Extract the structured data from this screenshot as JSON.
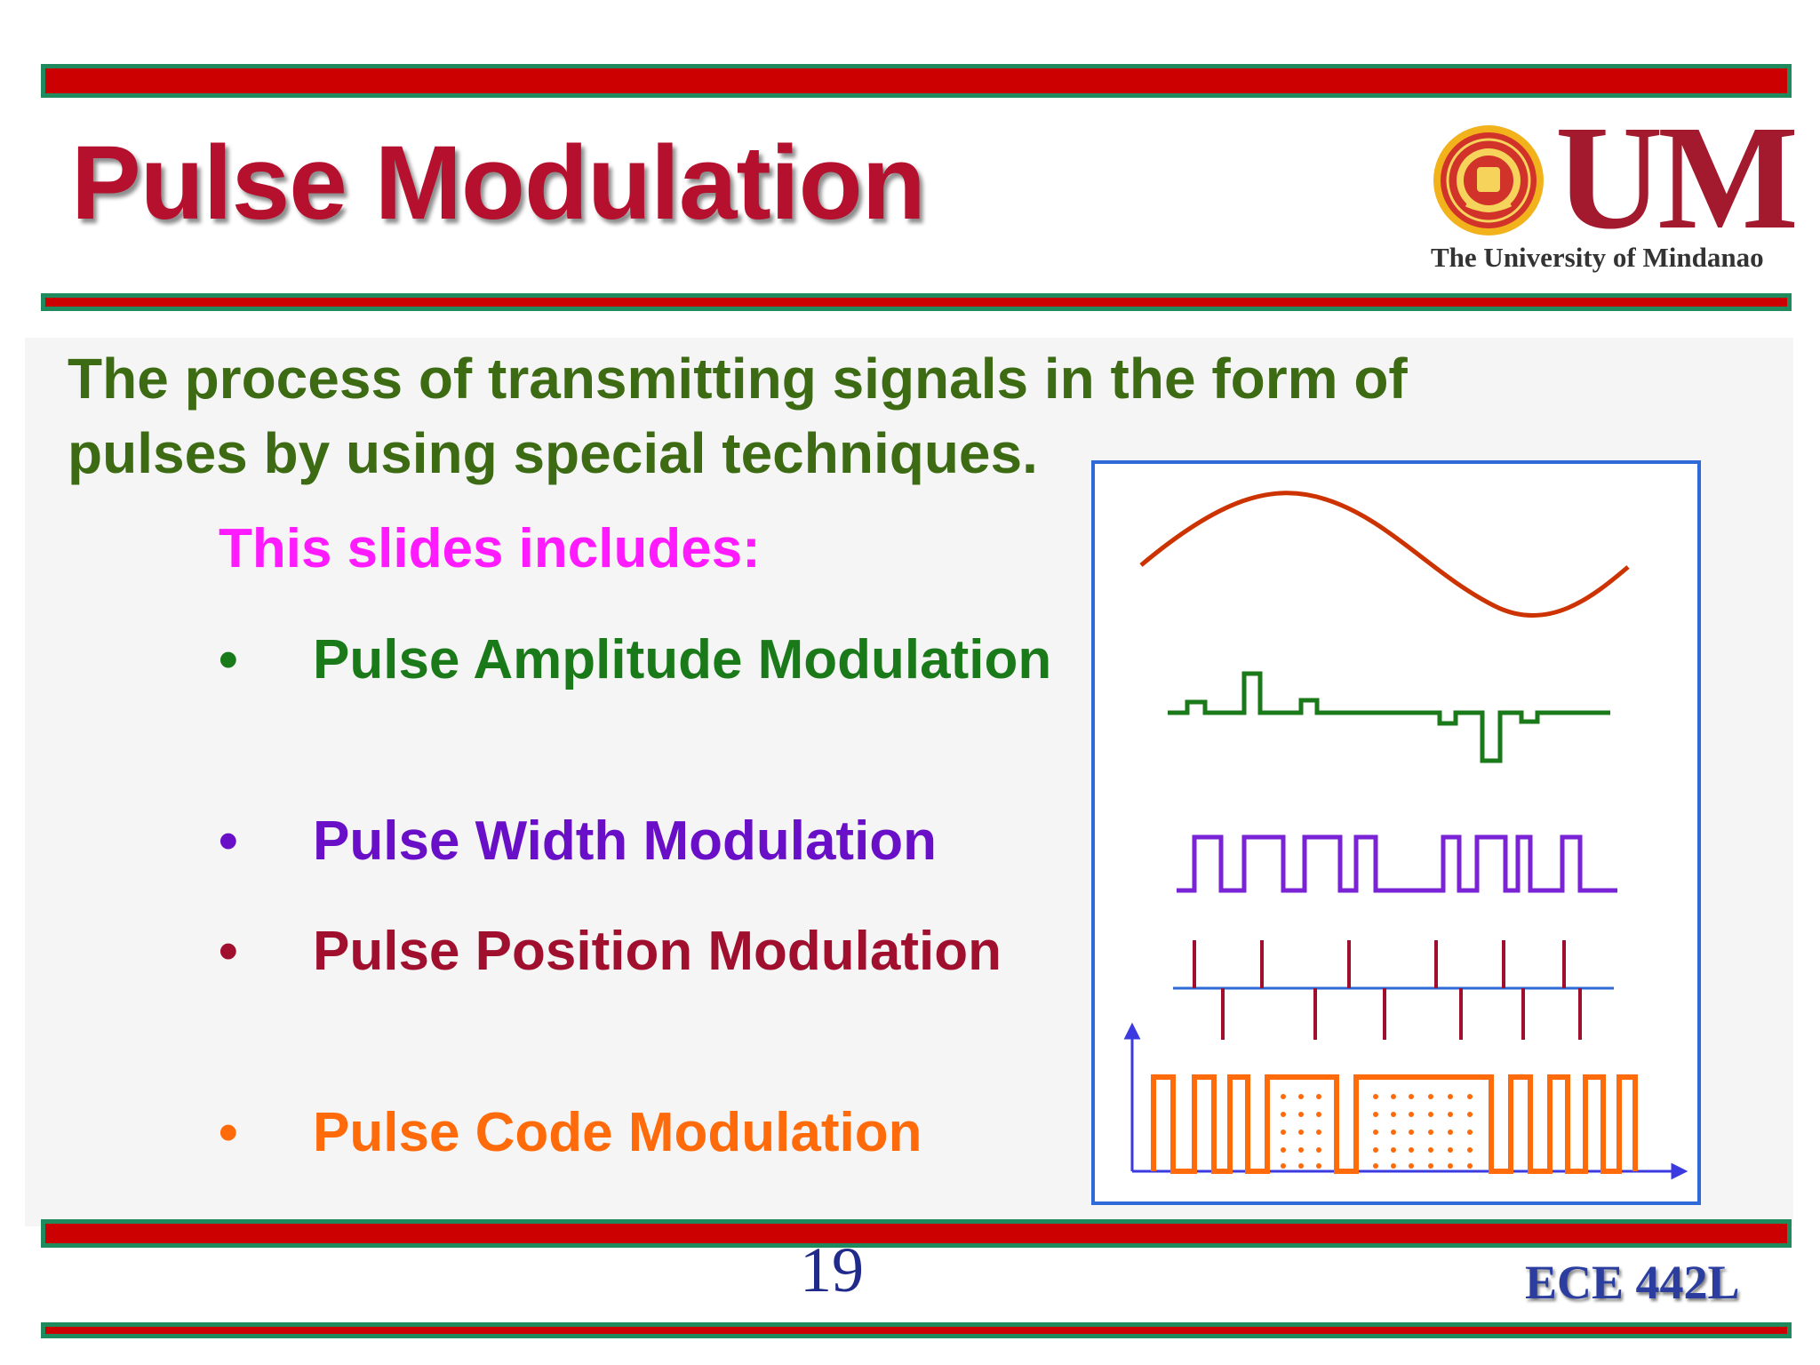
{
  "slide": {
    "title": "Pulse Modulation",
    "logo": {
      "mark": "UM",
      "name": "The University of Mindanao"
    },
    "definition": "The process of transmitting signals in the form of pulses by using special techniques.",
    "includes_heading": "This slides includes:",
    "bullets": [
      {
        "label": "Pulse Amplitude Modulation",
        "color": "#1a7a1a"
      },
      {
        "label": "Pulse Width Modulation",
        "color": "#6a0fc8"
      },
      {
        "label": "Pulse Position Modulation",
        "color": "#a0102e"
      },
      {
        "label": "Pulse Code Modulation",
        "color": "#ff6a0a"
      }
    ],
    "bullet_marker": "•",
    "page_number": "19",
    "course_code": "ECE 442L"
  },
  "colors": {
    "bar_red": "#cc0000",
    "bar_border": "#1e8a5e",
    "title": "#b5102e",
    "definition": "#3d6b14",
    "includes_heading": "#ff1aff",
    "diagram_border": "#2f6bd8",
    "sine": "#cc3300",
    "pam": "#1a7a1a",
    "pwm": "#7a22d6",
    "ppm": "#a0102e",
    "ppm_axis": "#2f6bd8",
    "pcm": "#ff6a0a",
    "pcm_axis": "#3a3ae0"
  }
}
